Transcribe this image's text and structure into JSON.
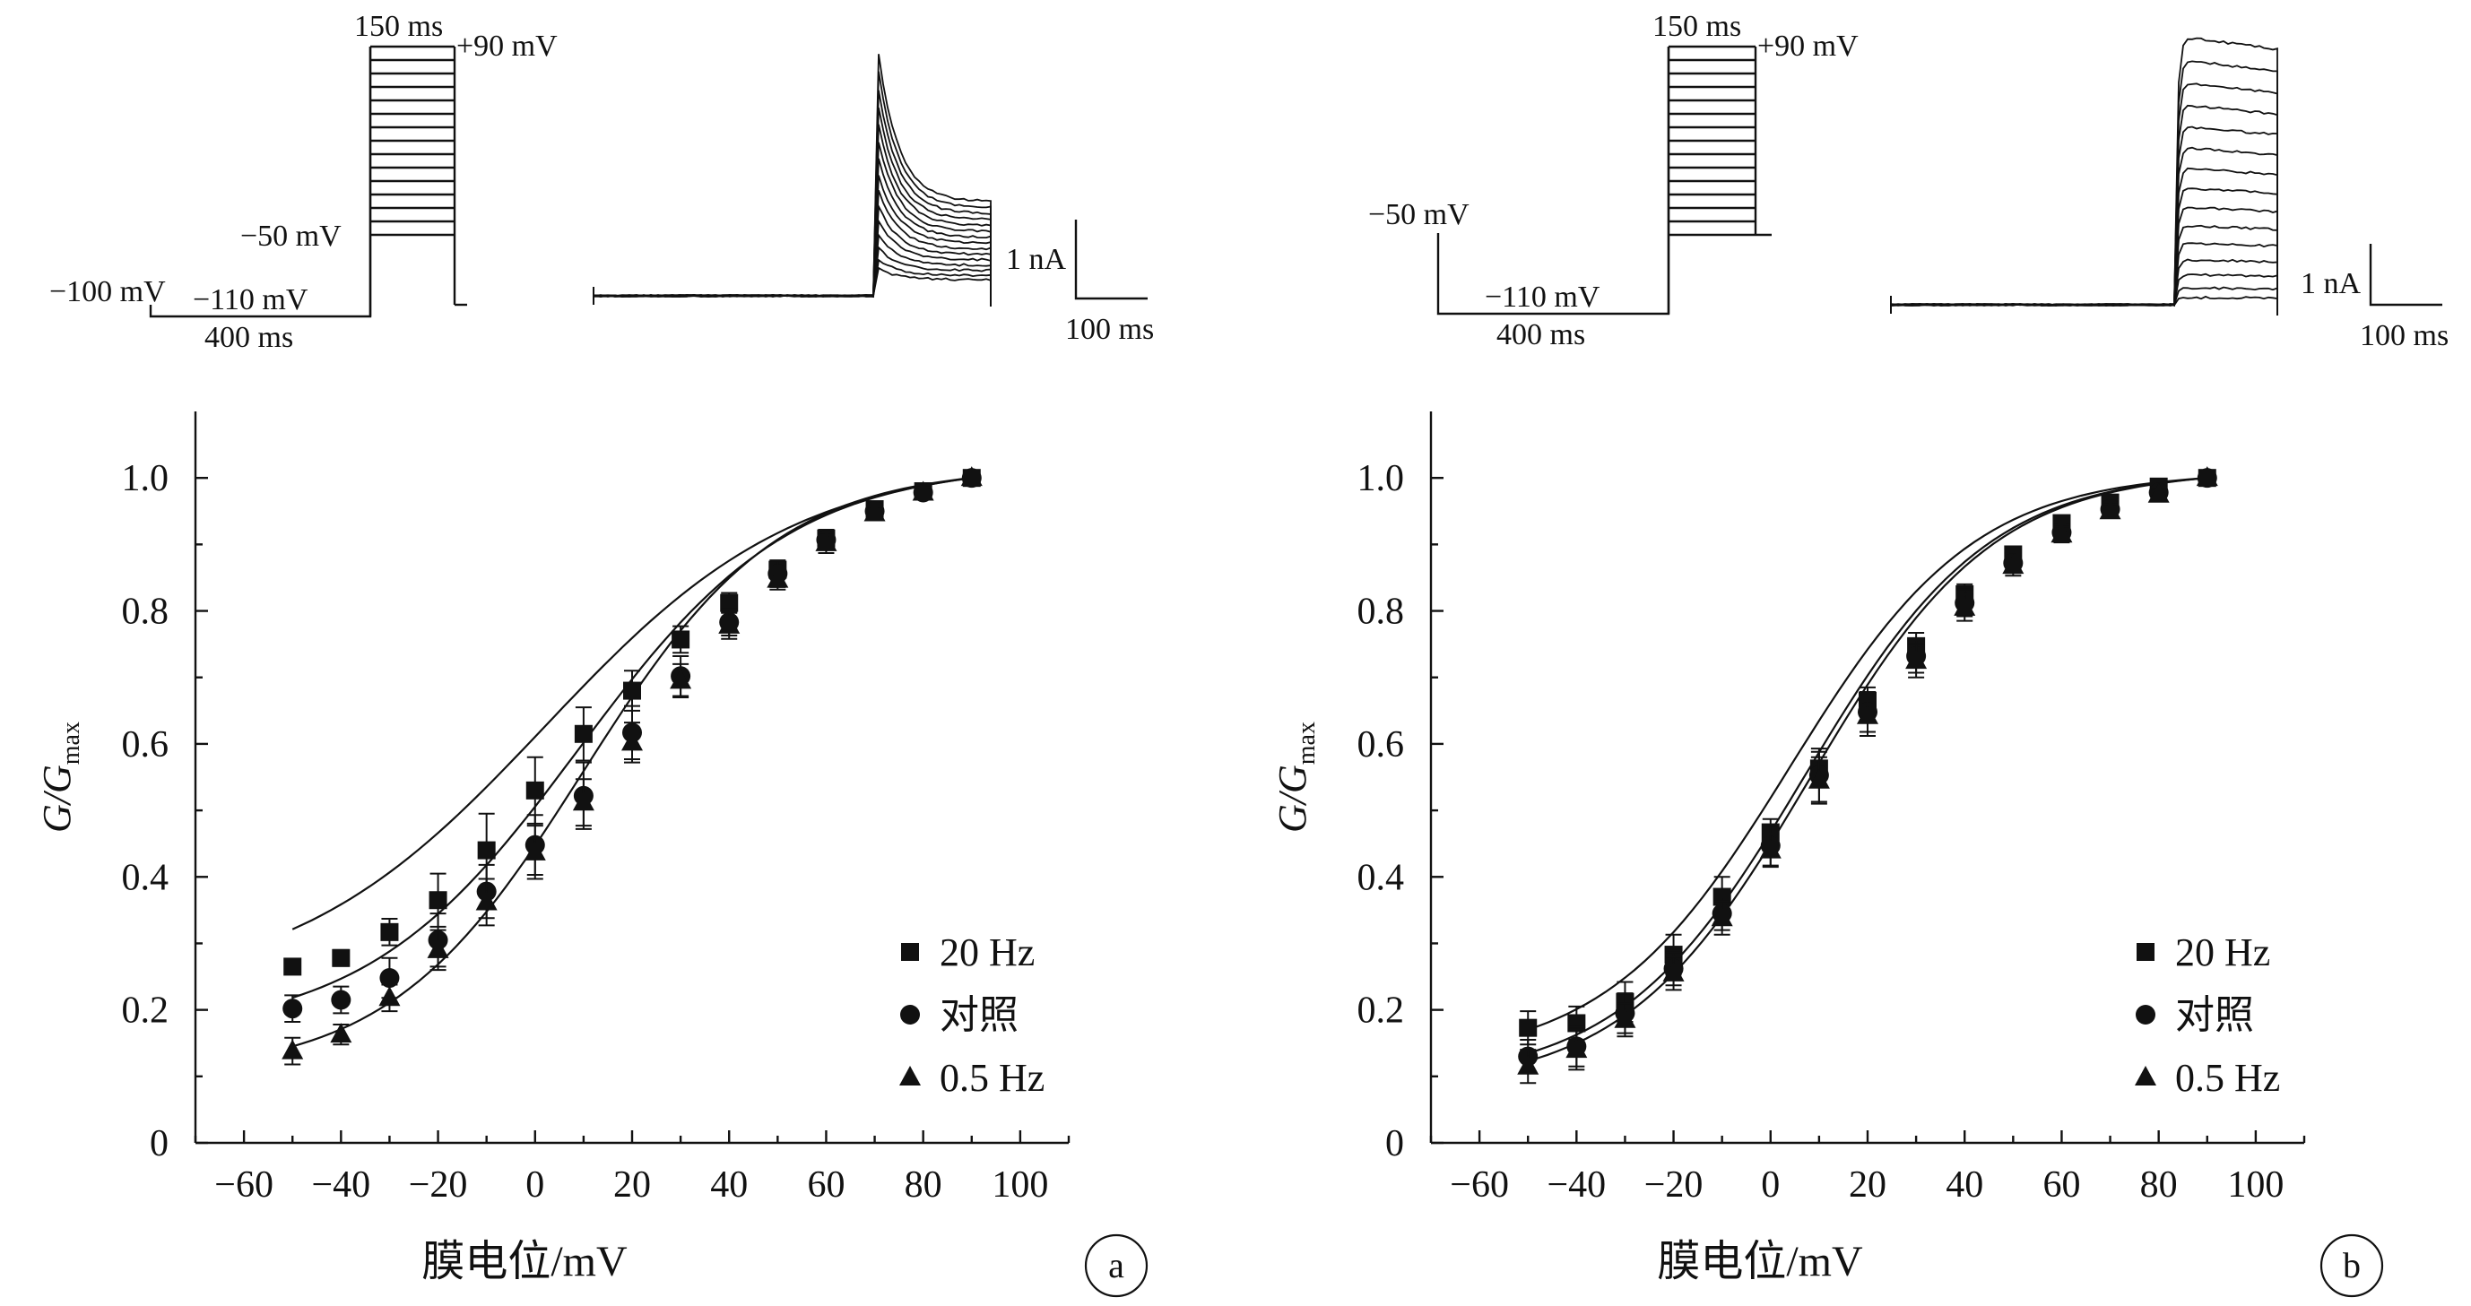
{
  "chart_data": [
    {
      "type": "line",
      "panel_label": "a",
      "protocol": {
        "holding_label": "−100 mV",
        "prepulse_label": "−110 mV",
        "prepulse_duration": "400 ms",
        "step_duration": "150 ms",
        "top_label": "+90 mV",
        "bottom_label": "−50 mV",
        "step_count": 15
      },
      "traces_scalebar": {
        "current": "1 nA",
        "time": "100 ms"
      },
      "xlabel": "膜电位/mV",
      "ylabel_main": "G/G",
      "ylabel_sub": "max",
      "xlim": [
        -70,
        110
      ],
      "ylim": [
        0,
        1.1
      ],
      "xticks": [
        -60,
        -40,
        -20,
        0,
        20,
        40,
        60,
        80,
        100
      ],
      "xtick_labels": [
        "−60",
        "−40",
        "−20",
        "0",
        "20",
        "40",
        "60",
        "80",
        "100"
      ],
      "yticks": [
        0,
        0.2,
        0.4,
        0.6,
        0.8,
        1.0
      ],
      "ytick_labels": [
        "0",
        "0.2",
        "0.4",
        "0.6",
        "0.8",
        "1.0"
      ],
      "x": [
        -50,
        -40,
        -30,
        -20,
        -10,
        0,
        10,
        20,
        30,
        40,
        50,
        60,
        70,
        80,
        90
      ],
      "legend_position": "bottom-right",
      "series": [
        {
          "name": "20 Hz",
          "marker": "square",
          "values": [
            0.265,
            0.278,
            0.317,
            0.365,
            0.44,
            0.53,
            0.615,
            0.68,
            0.757,
            0.812,
            0.862,
            0.909,
            0.953,
            0.98,
            1.0
          ],
          "errors": [
            0.01,
            0.012,
            0.02,
            0.04,
            0.055,
            0.05,
            0.04,
            0.03,
            0.02,
            0.015,
            0.012,
            0.012,
            0.01,
            0.008,
            0.005
          ]
        },
        {
          "name": "对照",
          "marker": "circle",
          "values": [
            0.202,
            0.215,
            0.248,
            0.305,
            0.378,
            0.448,
            0.522,
            0.617,
            0.702,
            0.783,
            0.856,
            0.907,
            0.95,
            0.978,
            1.0
          ],
          "errors": [
            0.02,
            0.02,
            0.03,
            0.04,
            0.04,
            0.045,
            0.05,
            0.04,
            0.03,
            0.02,
            0.02,
            0.015,
            0.01,
            0.008,
            0.005
          ]
        },
        {
          "name": "0.5 Hz",
          "marker": "triangle",
          "values": [
            0.138,
            0.163,
            0.218,
            0.29,
            0.362,
            0.437,
            0.512,
            0.602,
            0.695,
            0.778,
            0.847,
            0.902,
            0.947,
            0.978,
            1.0
          ],
          "errors": [
            0.02,
            0.015,
            0.02,
            0.03,
            0.035,
            0.04,
            0.035,
            0.03,
            0.025,
            0.02,
            0.015,
            0.015,
            0.01,
            0.008,
            0.005
          ]
        }
      ]
    },
    {
      "type": "line",
      "panel_label": "b",
      "protocol": {
        "holding_label": "−50 mV",
        "prepulse_label": "−110 mV",
        "prepulse_duration": "400 ms",
        "step_duration": "150 ms",
        "top_label": "+90 mV",
        "bottom_label": "",
        "step_count": 15
      },
      "traces_scalebar": {
        "current": "1 nA",
        "time": "100 ms"
      },
      "xlabel": "膜电位/mV",
      "ylabel_main": "G/G",
      "ylabel_sub": "max",
      "xlim": [
        -70,
        110
      ],
      "ylim": [
        0,
        1.1
      ],
      "xticks": [
        -60,
        -40,
        -20,
        0,
        20,
        40,
        60,
        80,
        100
      ],
      "xtick_labels": [
        "−60",
        "−40",
        "−20",
        "0",
        "20",
        "40",
        "60",
        "80",
        "100"
      ],
      "yticks": [
        0,
        0.2,
        0.4,
        0.6,
        0.8,
        1.0
      ],
      "ytick_labels": [
        "0",
        "0.2",
        "0.4",
        "0.6",
        "0.8",
        "1.0"
      ],
      "x": [
        -50,
        -40,
        -30,
        -20,
        -10,
        0,
        10,
        20,
        30,
        40,
        50,
        60,
        70,
        80,
        90
      ],
      "legend_position": "bottom-right",
      "series": [
        {
          "name": "20 Hz",
          "marker": "square",
          "values": [
            0.173,
            0.18,
            0.212,
            0.283,
            0.37,
            0.467,
            0.563,
            0.665,
            0.747,
            0.825,
            0.885,
            0.932,
            0.963,
            0.987,
            1.0
          ],
          "errors": [
            0.025,
            0.025,
            0.03,
            0.03,
            0.03,
            0.02,
            0.025,
            0.02,
            0.02,
            0.015,
            0.01,
            0.01,
            0.008,
            0.006,
            0.005
          ]
        },
        {
          "name": "对照",
          "marker": "circle",
          "values": [
            0.13,
            0.145,
            0.195,
            0.262,
            0.345,
            0.447,
            0.553,
            0.648,
            0.732,
            0.812,
            0.872,
            0.918,
            0.953,
            0.978,
            1.0
          ],
          "errors": [
            0.025,
            0.03,
            0.03,
            0.025,
            0.025,
            0.03,
            0.04,
            0.03,
            0.025,
            0.02,
            0.015,
            0.012,
            0.01,
            0.008,
            0.005
          ]
        },
        {
          "name": "0.5 Hz",
          "marker": "triangle",
          "values": [
            0.115,
            0.14,
            0.185,
            0.255,
            0.338,
            0.44,
            0.545,
            0.642,
            0.725,
            0.805,
            0.868,
            0.915,
            0.95,
            0.975,
            1.0
          ],
          "errors": [
            0.025,
            0.03,
            0.025,
            0.025,
            0.025,
            0.025,
            0.035,
            0.03,
            0.025,
            0.02,
            0.015,
            0.012,
            0.01,
            0.008,
            0.005
          ]
        }
      ]
    }
  ]
}
